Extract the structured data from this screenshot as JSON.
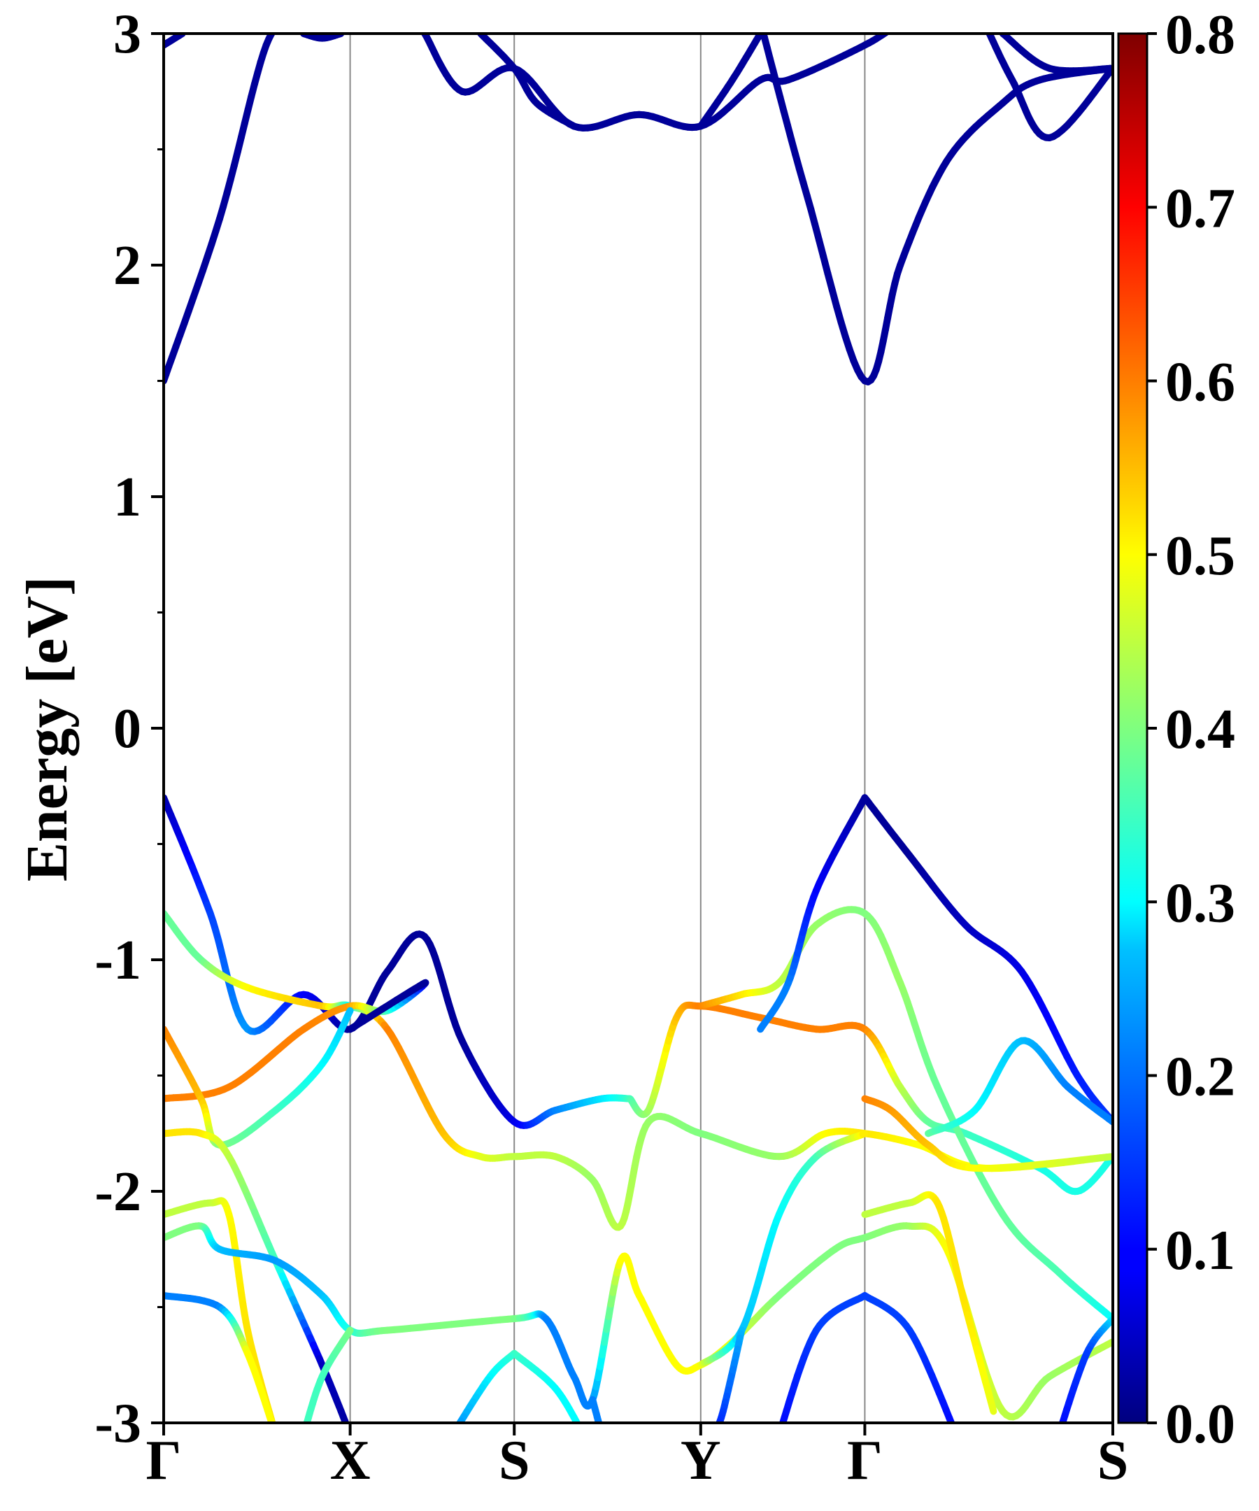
{
  "chart_data": {
    "type": "line",
    "title": "",
    "xlabel": "",
    "ylabel": "Energy [eV]",
    "ylim": [
      -3,
      3
    ],
    "yticks": [
      "3",
      "2",
      "1",
      "0",
      "-1",
      "-2",
      "-3"
    ],
    "grid": false,
    "legend": "none",
    "kpoints": [
      {
        "label": "Γ",
        "x": 0.0
      },
      {
        "label": "X",
        "x": 1.0
      },
      {
        "label": "S",
        "x": 1.88
      },
      {
        "label": "Y",
        "x": 2.88
      },
      {
        "label": "Γ",
        "x": 3.76
      },
      {
        "label": "S",
        "x": 5.09
      }
    ],
    "colorbar": {
      "colormap": "jet",
      "range": [
        0.0,
        0.8
      ],
      "ticks": [
        "0.8",
        "0.7",
        "0.6",
        "0.5",
        "0.4",
        "0.3",
        "0.2",
        "0.1",
        "0.0"
      ]
    },
    "series": [
      {
        "points": [
          [
            0,
            1.5,
            0.02
          ],
          [
            0.3,
            2.2,
            0.02
          ],
          [
            0.55,
            2.95,
            0.02
          ],
          [
            0.7,
            3.05,
            0.02
          ]
        ]
      },
      {
        "points": [
          [
            0,
            2.95,
            0.02
          ],
          [
            0.1,
            3.0,
            0.02
          ]
        ]
      },
      {
        "points": [
          [
            0.75,
            3.0,
            0.02
          ],
          [
            0.85,
            2.98,
            0.02
          ],
          [
            0.95,
            3.0,
            0.02
          ]
        ]
      },
      {
        "points": [
          [
            1.4,
            3.0,
            0.02
          ],
          [
            1.6,
            2.75,
            0.02
          ],
          [
            1.88,
            2.85,
            0.02
          ],
          [
            2.2,
            2.6,
            0.02
          ],
          [
            2.55,
            2.65,
            0.02
          ],
          [
            2.88,
            2.6,
            0.02
          ],
          [
            3.2,
            2.8,
            0.02
          ],
          [
            3.35,
            2.8,
            0.02
          ],
          [
            3.76,
            2.95,
            0.02
          ],
          [
            3.95,
            3.05,
            0.02
          ]
        ]
      },
      {
        "points": [
          [
            1.7,
            3.0,
            0.02
          ],
          [
            1.88,
            2.85,
            0.02
          ],
          [
            2.0,
            2.7,
            0.02
          ],
          [
            2.2,
            2.6,
            0.02
          ]
        ]
      },
      {
        "points": [
          [
            3.2,
            3.05,
            0.02
          ],
          [
            3.45,
            2.3,
            0.02
          ],
          [
            3.76,
            1.5,
            0.02
          ],
          [
            3.95,
            2.0,
            0.02
          ],
          [
            4.2,
            2.45,
            0.02
          ],
          [
            4.5,
            2.7,
            0.02
          ],
          [
            4.7,
            2.8,
            0.02
          ],
          [
            5.09,
            2.85,
            0.02
          ]
        ]
      },
      {
        "points": [
          [
            2.88,
            2.6,
            0.02
          ],
          [
            3.05,
            2.8,
            0.02
          ],
          [
            3.2,
            3.0,
            0.02
          ]
        ]
      },
      {
        "points": [
          [
            4.4,
            3.05,
            0.02
          ],
          [
            4.55,
            2.8,
            0.02
          ],
          [
            4.75,
            2.55,
            0.02
          ],
          [
            5.09,
            2.85,
            0.02
          ]
        ]
      },
      {
        "points": [
          [
            4.5,
            3.0,
            0.02
          ],
          [
            4.75,
            2.85,
            0.02
          ],
          [
            5.09,
            2.85,
            0.02
          ]
        ]
      },
      {
        "points": [
          [
            0,
            -0.3,
            0.03
          ],
          [
            0.25,
            -0.8,
            0.15
          ],
          [
            0.45,
            -1.3,
            0.22
          ],
          [
            0.75,
            -1.15,
            0.1
          ],
          [
            1.0,
            -1.3,
            0.02
          ],
          [
            1.2,
            -1.05,
            0.02
          ],
          [
            1.4,
            -0.9,
            0.02
          ],
          [
            1.6,
            -1.35,
            0.02
          ],
          [
            1.88,
            -1.7,
            0.08
          ],
          [
            2.1,
            -1.65,
            0.2
          ],
          [
            2.35,
            -1.6,
            0.28
          ],
          [
            2.5,
            -1.6,
            0.35
          ]
        ]
      },
      {
        "points": [
          [
            0,
            -0.8,
            0.38
          ],
          [
            0.2,
            -1.0,
            0.38
          ],
          [
            0.45,
            -1.12,
            0.5
          ],
          [
            0.85,
            -1.2,
            0.55
          ],
          [
            1.0,
            -1.2,
            0.3
          ],
          [
            1.2,
            -1.3,
            0.6
          ],
          [
            1.5,
            -1.75,
            0.55
          ],
          [
            1.7,
            -1.85,
            0.48
          ],
          [
            1.88,
            -1.85,
            0.45
          ],
          [
            2.1,
            -1.85,
            0.45
          ],
          [
            2.3,
            -1.95,
            0.42
          ],
          [
            2.45,
            -2.15,
            0.45
          ],
          [
            2.6,
            -1.7,
            0.42
          ],
          [
            2.88,
            -1.75,
            0.4
          ],
          [
            3.3,
            -1.85,
            0.42
          ],
          [
            3.55,
            -1.75,
            0.5
          ],
          [
            3.76,
            -1.75,
            0.52
          ],
          [
            4.05,
            -1.8,
            0.5
          ],
          [
            4.4,
            -1.9,
            0.5
          ],
          [
            5.09,
            -1.85,
            0.45
          ]
        ]
      },
      {
        "points": [
          [
            0,
            -1.6,
            0.6
          ],
          [
            0.35,
            -1.55,
            0.6
          ],
          [
            0.75,
            -1.3,
            0.6
          ],
          [
            1.0,
            -1.2,
            0.58
          ],
          [
            1.2,
            -1.22,
            0.35
          ],
          [
            1.4,
            -1.1,
            0.02
          ],
          [
            1.0,
            -1.3,
            0.02
          ]
        ]
      },
      {
        "points": [
          [
            0,
            -1.3,
            0.6
          ],
          [
            0.2,
            -1.6,
            0.55
          ],
          [
            0.3,
            -1.8,
            0.4
          ],
          [
            0.6,
            -1.65,
            0.35
          ],
          [
            0.85,
            -1.45,
            0.3
          ],
          [
            1.0,
            -1.22,
            0.25
          ]
        ]
      },
      {
        "points": [
          [
            0,
            -1.75,
            0.52
          ],
          [
            0.2,
            -1.75,
            0.52
          ],
          [
            0.35,
            -1.85,
            0.45
          ],
          [
            0.6,
            -2.3,
            0.35
          ],
          [
            0.85,
            -2.75,
            0.05
          ],
          [
            1.0,
            -3.05,
            0.02
          ]
        ]
      },
      {
        "points": [
          [
            2.5,
            -1.6,
            0.35
          ],
          [
            2.6,
            -1.65,
            0.42
          ],
          [
            2.75,
            -1.25,
            0.55
          ],
          [
            2.88,
            -1.2,
            0.6
          ],
          [
            3.2,
            -1.25,
            0.6
          ],
          [
            3.5,
            -1.3,
            0.6
          ],
          [
            3.76,
            -1.3,
            0.6
          ],
          [
            3.95,
            -1.55,
            0.45
          ],
          [
            4.1,
            -1.7,
            0.38
          ],
          [
            4.3,
            -1.75,
            0.35
          ],
          [
            4.7,
            -1.9,
            0.32
          ],
          [
            4.9,
            -2.0,
            0.32
          ],
          [
            5.09,
            -1.85,
            0.32
          ]
        ]
      },
      {
        "points": [
          [
            2.88,
            -1.2,
            0.6
          ],
          [
            3.1,
            -1.15,
            0.52
          ],
          [
            3.3,
            -1.1,
            0.45
          ],
          [
            3.5,
            -0.85,
            0.42
          ],
          [
            3.76,
            -0.8,
            0.4
          ],
          [
            3.95,
            -1.1,
            0.42
          ],
          [
            4.15,
            -1.55,
            0.38
          ],
          [
            4.5,
            -2.1,
            0.38
          ],
          [
            4.8,
            -2.35,
            0.36
          ],
          [
            5.09,
            -2.55,
            0.3
          ]
        ]
      },
      {
        "points": [
          [
            3.76,
            -0.3,
            0.02
          ],
          [
            4.0,
            -0.55,
            0.02
          ],
          [
            4.3,
            -0.85,
            0.05
          ],
          [
            4.6,
            -1.05,
            0.08
          ],
          [
            4.9,
            -1.5,
            0.12
          ],
          [
            5.09,
            -1.7,
            0.15
          ]
        ]
      },
      {
        "points": [
          [
            3.2,
            -1.3,
            0.2
          ],
          [
            3.35,
            -1.1,
            0.2
          ],
          [
            3.5,
            -0.7,
            0.1
          ],
          [
            3.76,
            -0.3,
            0.02
          ]
        ]
      },
      {
        "points": [
          [
            4.1,
            -1.75,
            0.38
          ],
          [
            4.35,
            -1.65,
            0.3
          ],
          [
            4.6,
            -1.35,
            0.25
          ],
          [
            4.85,
            -1.55,
            0.2
          ],
          [
            5.09,
            -1.7,
            0.2
          ]
        ]
      },
      {
        "points": [
          [
            3.76,
            -1.6,
            0.6
          ],
          [
            3.9,
            -1.65,
            0.58
          ],
          [
            4.1,
            -1.8,
            0.55
          ],
          [
            4.35,
            -1.9,
            0.5
          ],
          [
            5.09,
            -1.85,
            0.45
          ]
        ]
      },
      {
        "points": [
          [
            0,
            -2.1,
            0.45
          ],
          [
            0.25,
            -2.05,
            0.45
          ],
          [
            0.35,
            -2.1,
            0.5
          ],
          [
            0.45,
            -2.6,
            0.52
          ],
          [
            0.6,
            -3.05,
            0.52
          ]
        ]
      },
      {
        "points": [
          [
            0,
            -2.2,
            0.4
          ],
          [
            0.2,
            -2.15,
            0.4
          ],
          [
            0.3,
            -2.25,
            0.25
          ],
          [
            0.6,
            -2.3,
            0.22
          ],
          [
            0.85,
            -2.45,
            0.25
          ],
          [
            1.0,
            -2.6,
            0.32
          ],
          [
            1.2,
            -2.6,
            0.4
          ],
          [
            1.88,
            -2.55,
            0.4
          ],
          [
            2.05,
            -2.55,
            0.2
          ],
          [
            2.2,
            -2.8,
            0.2
          ],
          [
            2.3,
            -2.9,
            0.2
          ],
          [
            2.45,
            -2.3,
            0.5
          ],
          [
            2.55,
            -2.45,
            0.5
          ],
          [
            2.75,
            -2.75,
            0.5
          ],
          [
            2.88,
            -2.75,
            0.5
          ],
          [
            3.05,
            -2.65,
            0.48
          ],
          [
            3.3,
            -2.45,
            0.4
          ],
          [
            3.6,
            -2.25,
            0.4
          ],
          [
            3.76,
            -2.2,
            0.4
          ],
          [
            4.0,
            -2.15,
            0.42
          ],
          [
            4.2,
            -2.25,
            0.5
          ],
          [
            4.5,
            -2.95,
            0.45
          ],
          [
            4.75,
            -2.8,
            0.42
          ],
          [
            5.09,
            -2.65,
            0.45
          ]
        ]
      },
      {
        "points": [
          [
            1.0,
            -2.6,
            0.4
          ],
          [
            0.85,
            -2.8,
            0.35
          ],
          [
            0.75,
            -3.05,
            0.35
          ]
        ]
      },
      {
        "points": [
          [
            0,
            -2.45,
            0.2
          ],
          [
            0.3,
            -2.5,
            0.2
          ],
          [
            0.45,
            -2.7,
            0.5
          ],
          [
            0.6,
            -3.05,
            0.5
          ]
        ]
      },
      {
        "points": [
          [
            1.88,
            -2.7,
            0.35
          ],
          [
            2.1,
            -2.85,
            0.3
          ],
          [
            2.25,
            -3.05,
            0.3
          ]
        ]
      },
      {
        "points": [
          [
            1.88,
            -2.7,
            0.35
          ],
          [
            1.75,
            -2.8,
            0.3
          ],
          [
            1.55,
            -3.05,
            0.2
          ]
        ]
      },
      {
        "points": [
          [
            3.76,
            -2.1,
            0.45
          ],
          [
            4.0,
            -2.05,
            0.45
          ],
          [
            4.15,
            -2.05,
            0.52
          ],
          [
            4.3,
            -2.5,
            0.52
          ],
          [
            4.45,
            -2.95,
            0.48
          ]
        ]
      },
      {
        "points": [
          [
            3.76,
            -2.45,
            0.15
          ],
          [
            4.0,
            -2.6,
            0.15
          ],
          [
            4.25,
            -3.05,
            0.1
          ]
        ]
      },
      {
        "points": [
          [
            3.76,
            -2.45,
            0.15
          ],
          [
            3.5,
            -2.6,
            0.15
          ],
          [
            3.3,
            -3.05,
            0.1
          ]
        ]
      },
      {
        "points": [
          [
            2.88,
            -2.75,
            0.5
          ],
          [
            3.1,
            -2.6,
            0.25
          ],
          [
            3.3,
            -2.1,
            0.3
          ],
          [
            3.5,
            -1.85,
            0.35
          ],
          [
            3.76,
            -1.75,
            0.52
          ]
        ]
      },
      {
        "points": [
          [
            3.1,
            -2.6,
            0.25
          ],
          [
            3.0,
            -2.95,
            0.15
          ],
          [
            2.95,
            -3.05,
            0.1
          ]
        ]
      },
      {
        "points": [
          [
            5.09,
            -2.55,
            0.3
          ],
          [
            4.95,
            -2.7,
            0.15
          ],
          [
            4.8,
            -3.05,
            0.1
          ]
        ]
      },
      {
        "points": [
          [
            2.3,
            -2.9,
            0.2
          ],
          [
            2.35,
            -3.05,
            0.2
          ]
        ]
      }
    ]
  }
}
